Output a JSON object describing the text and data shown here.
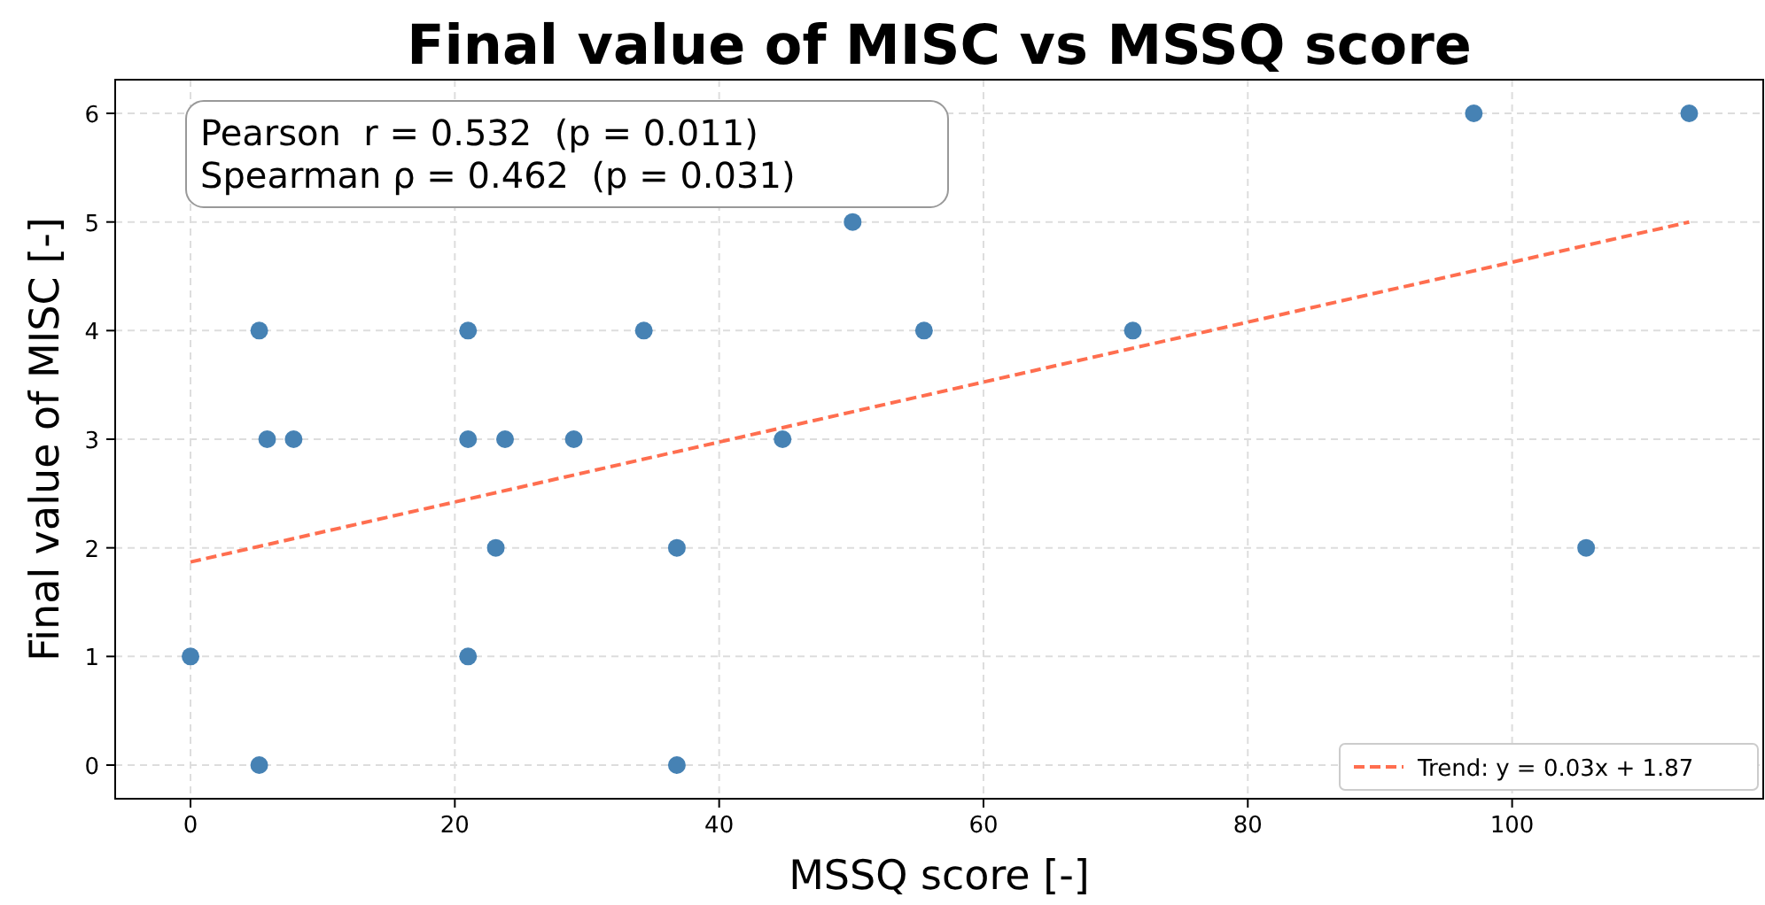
{
  "chart_data": {
    "type": "scatter",
    "title": "Final value of MISC vs MSSQ score",
    "xlabel": "MSSQ score [-]",
    "ylabel": "Final value of MISC [-]",
    "annotations": [
      "Pearson  r = 0.532  (p = 0.011)",
      "Spearman ρ = 0.462  (p = 0.031)"
    ],
    "xlim": [
      -5.7,
      119
    ],
    "ylim": [
      -0.31,
      6.31
    ],
    "xticks": [
      0,
      20,
      40,
      60,
      80,
      100
    ],
    "yticks": [
      0,
      1,
      2,
      3,
      4,
      5,
      6
    ],
    "grid": true,
    "legend": "bottom right",
    "series": [
      {
        "color": "#4682b4",
        "marker": "circle",
        "x": [
          0,
          5.2,
          5.2,
          5.8,
          7.8,
          21,
          21,
          21,
          23.1,
          23.8,
          29,
          34.3,
          36.8,
          36.8,
          44.8,
          50.1,
          55.5,
          71.3,
          97.1,
          105.6,
          113.4
        ],
        "values": [
          1,
          4,
          0,
          3,
          3,
          4,
          3,
          1,
          2,
          3,
          3,
          4,
          2,
          0,
          3,
          5,
          4,
          4,
          6,
          2,
          6
        ]
      },
      {
        "type": "line",
        "name": "Trend: y = 0.03x + 1.87",
        "color": "#ff6e4f",
        "line_style": "dashed",
        "marker": "none",
        "x": [
          0,
          113.4
        ],
        "values": [
          1.87,
          5.0
        ]
      }
    ]
  }
}
